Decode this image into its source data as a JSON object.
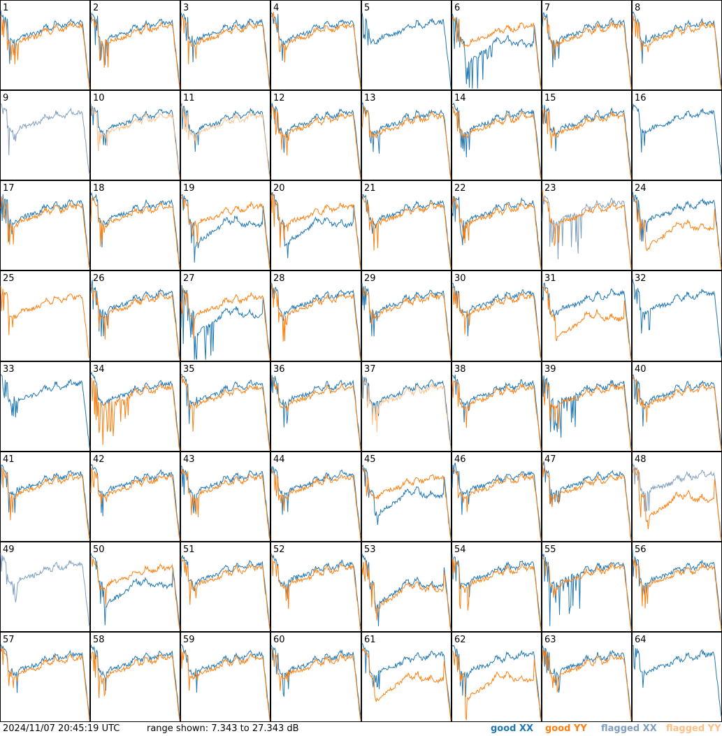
{
  "chart_data": {
    "type": "line",
    "layout": "8x8 small multiples (one panel per tile/antenna)",
    "panels": [
      "1",
      "2",
      "3",
      "4",
      "5",
      "6",
      "7",
      "8",
      "9",
      "10",
      "11",
      "12",
      "13",
      "14",
      "15",
      "16",
      "17",
      "18",
      "19",
      "20",
      "21",
      "22",
      "23",
      "24",
      "25",
      "26",
      "27",
      "28",
      "29",
      "30",
      "31",
      "32",
      "33",
      "34",
      "35",
      "36",
      "37",
      "38",
      "39",
      "40",
      "41",
      "42",
      "43",
      "44",
      "45",
      "46",
      "47",
      "48",
      "49",
      "50",
      "51",
      "52",
      "53",
      "54",
      "55",
      "56",
      "57",
      "58",
      "59",
      "60",
      "61",
      "62",
      "63",
      "64"
    ],
    "y_range_db": [
      7.343,
      27.343
    ],
    "series": [
      {
        "name": "good XX",
        "color": "#1f77b4"
      },
      {
        "name": "good YY",
        "color": "#ff7f0e"
      },
      {
        "name": "flagged XX",
        "color": "#7f9fbf"
      },
      {
        "name": "flagged YY",
        "color": "#ffbf87"
      }
    ],
    "flagged": {
      "xx": [
        "9",
        "23",
        "48",
        "49"
      ],
      "yy": [
        "5",
        "10",
        "11",
        "16",
        "32",
        "33",
        "37",
        "49",
        "64"
      ]
    },
    "absent": {
      "yy": [
        "5",
        "9",
        "16",
        "32",
        "33",
        "49",
        "64"
      ],
      "xx": [
        "25"
      ]
    },
    "profile_hints": {
      "xx_low": [
        "6",
        "19",
        "20",
        "27",
        "45",
        "50",
        "53"
      ],
      "yy_low": [
        "24",
        "31",
        "48",
        "53",
        "61",
        "62"
      ],
      "xx_spiky": [
        "6",
        "23",
        "27",
        "39",
        "55"
      ],
      "yy_spiky": [
        "34",
        "9"
      ]
    }
  },
  "footer": {
    "timestamp": "2024/11/07 20:45:19 UTC",
    "range": "range shown: 7.343 to 27.343 dB",
    "legend": {
      "good_xx": "good XX",
      "good_yy": "good YY",
      "flagged_xx": "flagged XX",
      "flagged_yy": "flagged YY"
    }
  }
}
